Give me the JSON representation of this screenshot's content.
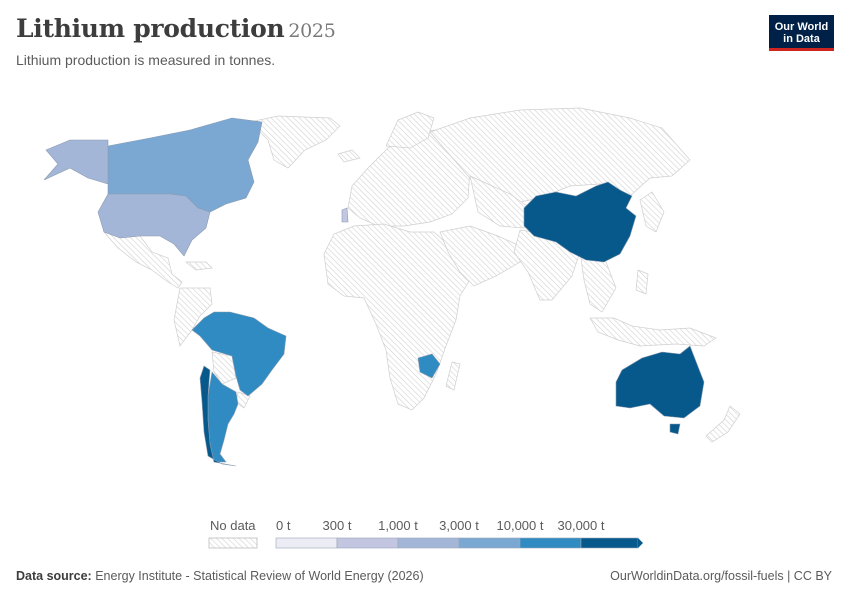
{
  "header": {
    "title": "Lithium production",
    "year": "2025",
    "subtitle": "Lithium production is measured in tonnes.",
    "logo_line1": "Our World",
    "logo_line2": "in Data"
  },
  "legend": {
    "no_data_label": "No data",
    "bins": [
      {
        "label": "0 t",
        "color": "#ececf4"
      },
      {
        "label": "300 t",
        "color": "#c3c6e0"
      },
      {
        "label": "1,000 t",
        "color": "#a3b6d8"
      },
      {
        "label": "3,000 t",
        "color": "#7aa8d3"
      },
      {
        "label": "10,000 t",
        "color": "#2f8bc1"
      },
      {
        "label": "30,000 t",
        "color": "#07598c"
      }
    ]
  },
  "map_data": {
    "metric": "Lithium production",
    "unit": "tonnes",
    "countries": [
      {
        "name": "Australia",
        "bin": "30,000 t+"
      },
      {
        "name": "China",
        "bin": "30,000 t+"
      },
      {
        "name": "Chile",
        "bin": "30,000 t+"
      },
      {
        "name": "Argentina",
        "bin": "10,000–30,000 t"
      },
      {
        "name": "Brazil",
        "bin": "10,000–30,000 t"
      },
      {
        "name": "Zimbabwe",
        "bin": "10,000–30,000 t"
      },
      {
        "name": "Canada",
        "bin": "3,000–10,000 t"
      },
      {
        "name": "United States",
        "bin": "1,000–3,000 t"
      },
      {
        "name": "Portugal",
        "bin": "300–1,000 t"
      }
    ]
  },
  "footer": {
    "source_label": "Data source:",
    "source_text": "Energy Institute - Statistical Review of World Energy (2026)",
    "right_text": "OurWorldinData.org/fossil-fuels | CC BY"
  }
}
